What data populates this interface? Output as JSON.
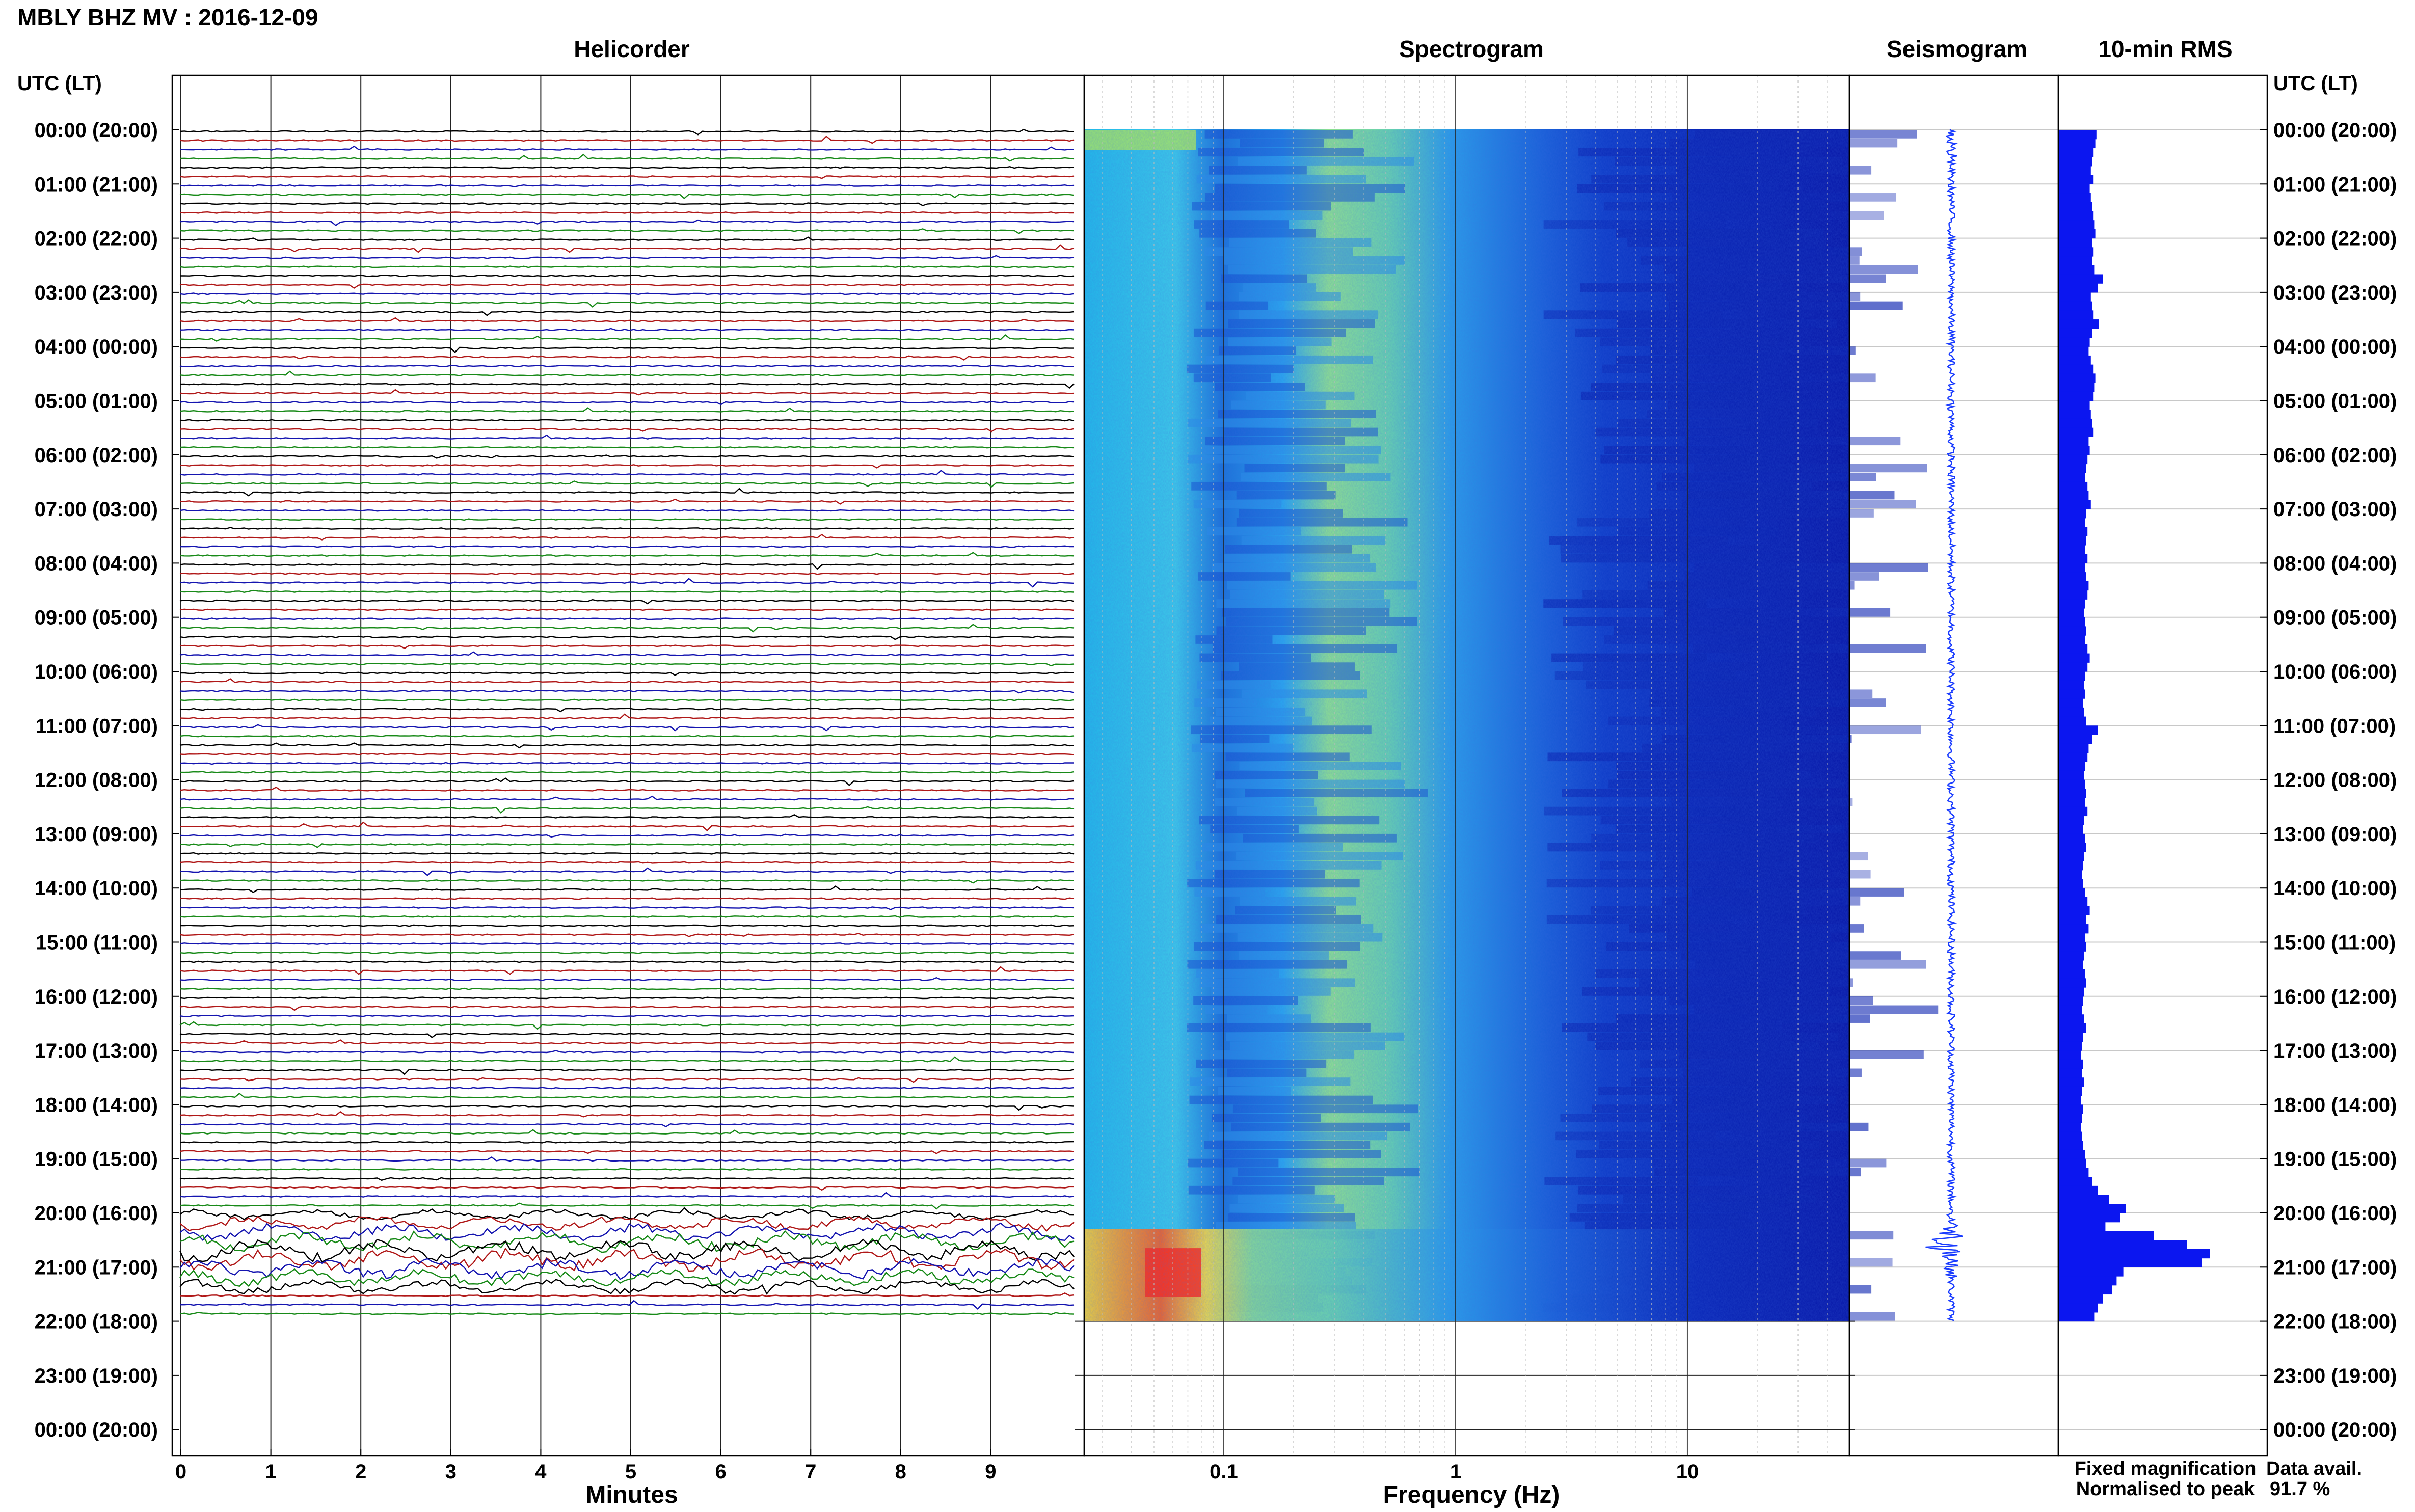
{
  "header": {
    "title": "MBLY BHZ MV : 2016-12-09",
    "timezone_label": "UTC (LT)"
  },
  "panels": {
    "helicorder": "Helicorder",
    "spectrogram": "Spectrogram",
    "seismogram": "Seismogram",
    "rms": "10-min RMS"
  },
  "axes": {
    "helicorder_xlabel": "Minutes",
    "helicorder_ticks": [
      "0",
      "1",
      "2",
      "3",
      "4",
      "5",
      "6",
      "7",
      "8",
      "9"
    ],
    "spectrogram_xlabel": "Frequency (Hz)",
    "spectrogram_ticks": [
      "0.1",
      "1",
      "10"
    ]
  },
  "legend": {
    "fixed": "Fixed magnification",
    "normalised": "Normalised to peak",
    "fixed_color": "#1a1aff",
    "normalised_color": "#ff1a1a"
  },
  "availability": {
    "label": "Data avail.",
    "value": "91.7 %"
  },
  "colors": {
    "trace_cycle": [
      "#000000",
      "#b01818",
      "#1515b0",
      "#188a18"
    ],
    "rms_bar": "#0b16f0",
    "seismogram": "#1a3cff",
    "spectrogram_low": "#0a1ea8",
    "spectrogram_mid": "#2aa8f0",
    "spectrogram_high": "#ffff40",
    "spectrogram_peak": "#ff2a1a"
  },
  "chart_data": {
    "type": "heatmap",
    "title": "MBLY BHZ MV : 2016-12-09",
    "y_ticks": [
      "00:00 (20:00)",
      "01:00 (21:00)",
      "02:00 (22:00)",
      "03:00 (23:00)",
      "04:00 (00:00)",
      "05:00 (01:00)",
      "06:00 (02:00)",
      "07:00 (03:00)",
      "08:00 (04:00)",
      "09:00 (05:00)",
      "10:00 (06:00)",
      "11:00 (07:00)",
      "12:00 (08:00)",
      "13:00 (09:00)",
      "14:00 (10:00)",
      "15:00 (11:00)",
      "16:00 (12:00)",
      "17:00 (13:00)",
      "18:00 (14:00)",
      "19:00 (15:00)",
      "20:00 (16:00)",
      "21:00 (17:00)",
      "22:00 (18:00)",
      "23:00 (19:00)",
      "00:00 (20:00)"
    ],
    "helicorder": {
      "xlabel": "Minutes",
      "xlim": [
        0,
        10
      ],
      "lines_per_hour": 6,
      "hours_with_data": 22
    },
    "spectrogram": {
      "xlabel": "Frequency (Hz)",
      "xscale": "log",
      "xlim": [
        0.025,
        50
      ],
      "xticks": [
        0.1,
        1,
        10
      ]
    },
    "rms_10min": {
      "series_hours_start": 0,
      "bin_minutes": 10,
      "values": [
        0.34,
        0.33,
        0.31,
        0.3,
        0.29,
        0.31,
        0.28,
        0.29,
        0.3,
        0.31,
        0.32,
        0.33,
        0.3,
        0.31,
        0.3,
        0.32,
        0.4,
        0.35,
        0.29,
        0.3,
        0.31,
        0.36,
        0.3,
        0.28,
        0.27,
        0.29,
        0.31,
        0.33,
        0.32,
        0.31,
        0.28,
        0.29,
        0.3,
        0.31,
        0.27,
        0.28,
        0.26,
        0.25,
        0.24,
        0.26,
        0.27,
        0.29,
        0.25,
        0.24,
        0.26,
        0.25,
        0.24,
        0.26,
        0.24,
        0.25,
        0.27,
        0.26,
        0.24,
        0.23,
        0.24,
        0.25,
        0.24,
        0.26,
        0.28,
        0.26,
        0.24,
        0.23,
        0.24,
        0.22,
        0.23,
        0.25,
        0.35,
        0.3,
        0.27,
        0.26,
        0.24,
        0.23,
        0.24,
        0.25,
        0.24,
        0.26,
        0.23,
        0.22,
        0.24,
        0.25,
        0.23,
        0.22,
        0.21,
        0.22,
        0.24,
        0.26,
        0.28,
        0.25,
        0.27,
        0.24,
        0.25,
        0.23,
        0.22,
        0.24,
        0.25,
        0.23,
        0.22,
        0.21,
        0.23,
        0.25,
        0.22,
        0.21,
        0.2,
        0.22,
        0.21,
        0.23,
        0.21,
        0.2,
        0.22,
        0.21,
        0.2,
        0.21,
        0.22,
        0.24,
        0.25,
        0.27,
        0.3,
        0.35,
        0.45,
        0.6,
        0.55,
        0.42,
        0.85,
        1.15,
        1.35,
        1.28,
        0.58,
        0.52,
        0.48,
        0.4,
        0.35,
        0.32
      ]
    },
    "seismogram": {
      "color": "#1a3cff",
      "event_window_utc": [
        "20:00",
        "21:30"
      ]
    },
    "legend": [
      "Fixed magnification",
      "Normalised to peak"
    ],
    "data_availability_percent": 91.7
  }
}
